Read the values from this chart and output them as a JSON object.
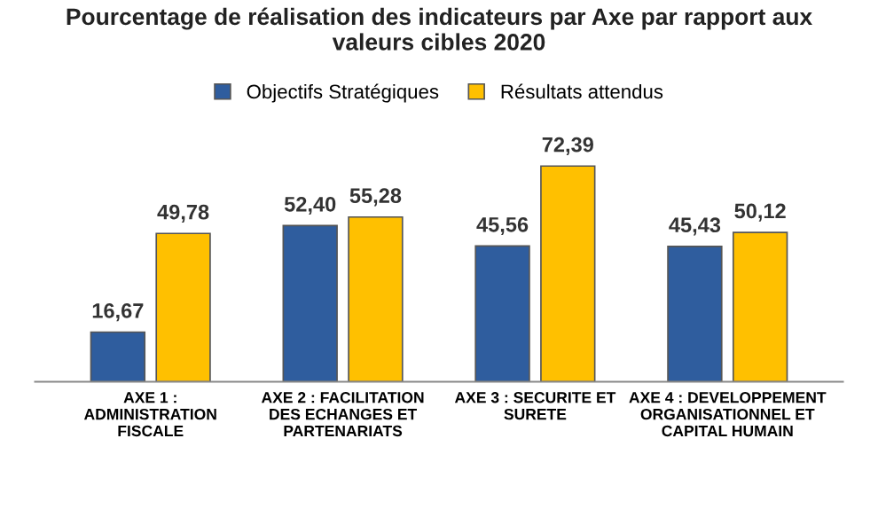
{
  "chart_data": {
    "type": "bar",
    "title": "Pourcentage de réalisation des indicateurs par Axe par rapport aux\nvaleurs cibles 2020",
    "categories": [
      "AXE 1 :\nADMINISTRATION\nFISCALE",
      "AXE 2 : FACILITATION\nDES ECHANGES ET\nPARTENARIATS",
      "AXE 3 : SECURITE ET\nSURETE",
      "AXE 4 : DEVELOPPEMENT\nORGANISATIONNEL ET\nCAPITAL HUMAIN"
    ],
    "series": [
      {
        "name": "Objectifs Stratégiques",
        "color": "#2f5d9e",
        "values": [
          16.67,
          52.4,
          45.56,
          45.43
        ],
        "value_labels": [
          "16,67",
          "52,40",
          "45,56",
          "45,43"
        ]
      },
      {
        "name": "Résultats attendus",
        "color": "#ffc000",
        "values": [
          49.78,
          55.28,
          72.39,
          50.12
        ],
        "value_labels": [
          "49,78",
          "55,28",
          "72,39",
          "50,12"
        ]
      }
    ],
    "tick_labels": "x",
    "legend": "top"
  }
}
